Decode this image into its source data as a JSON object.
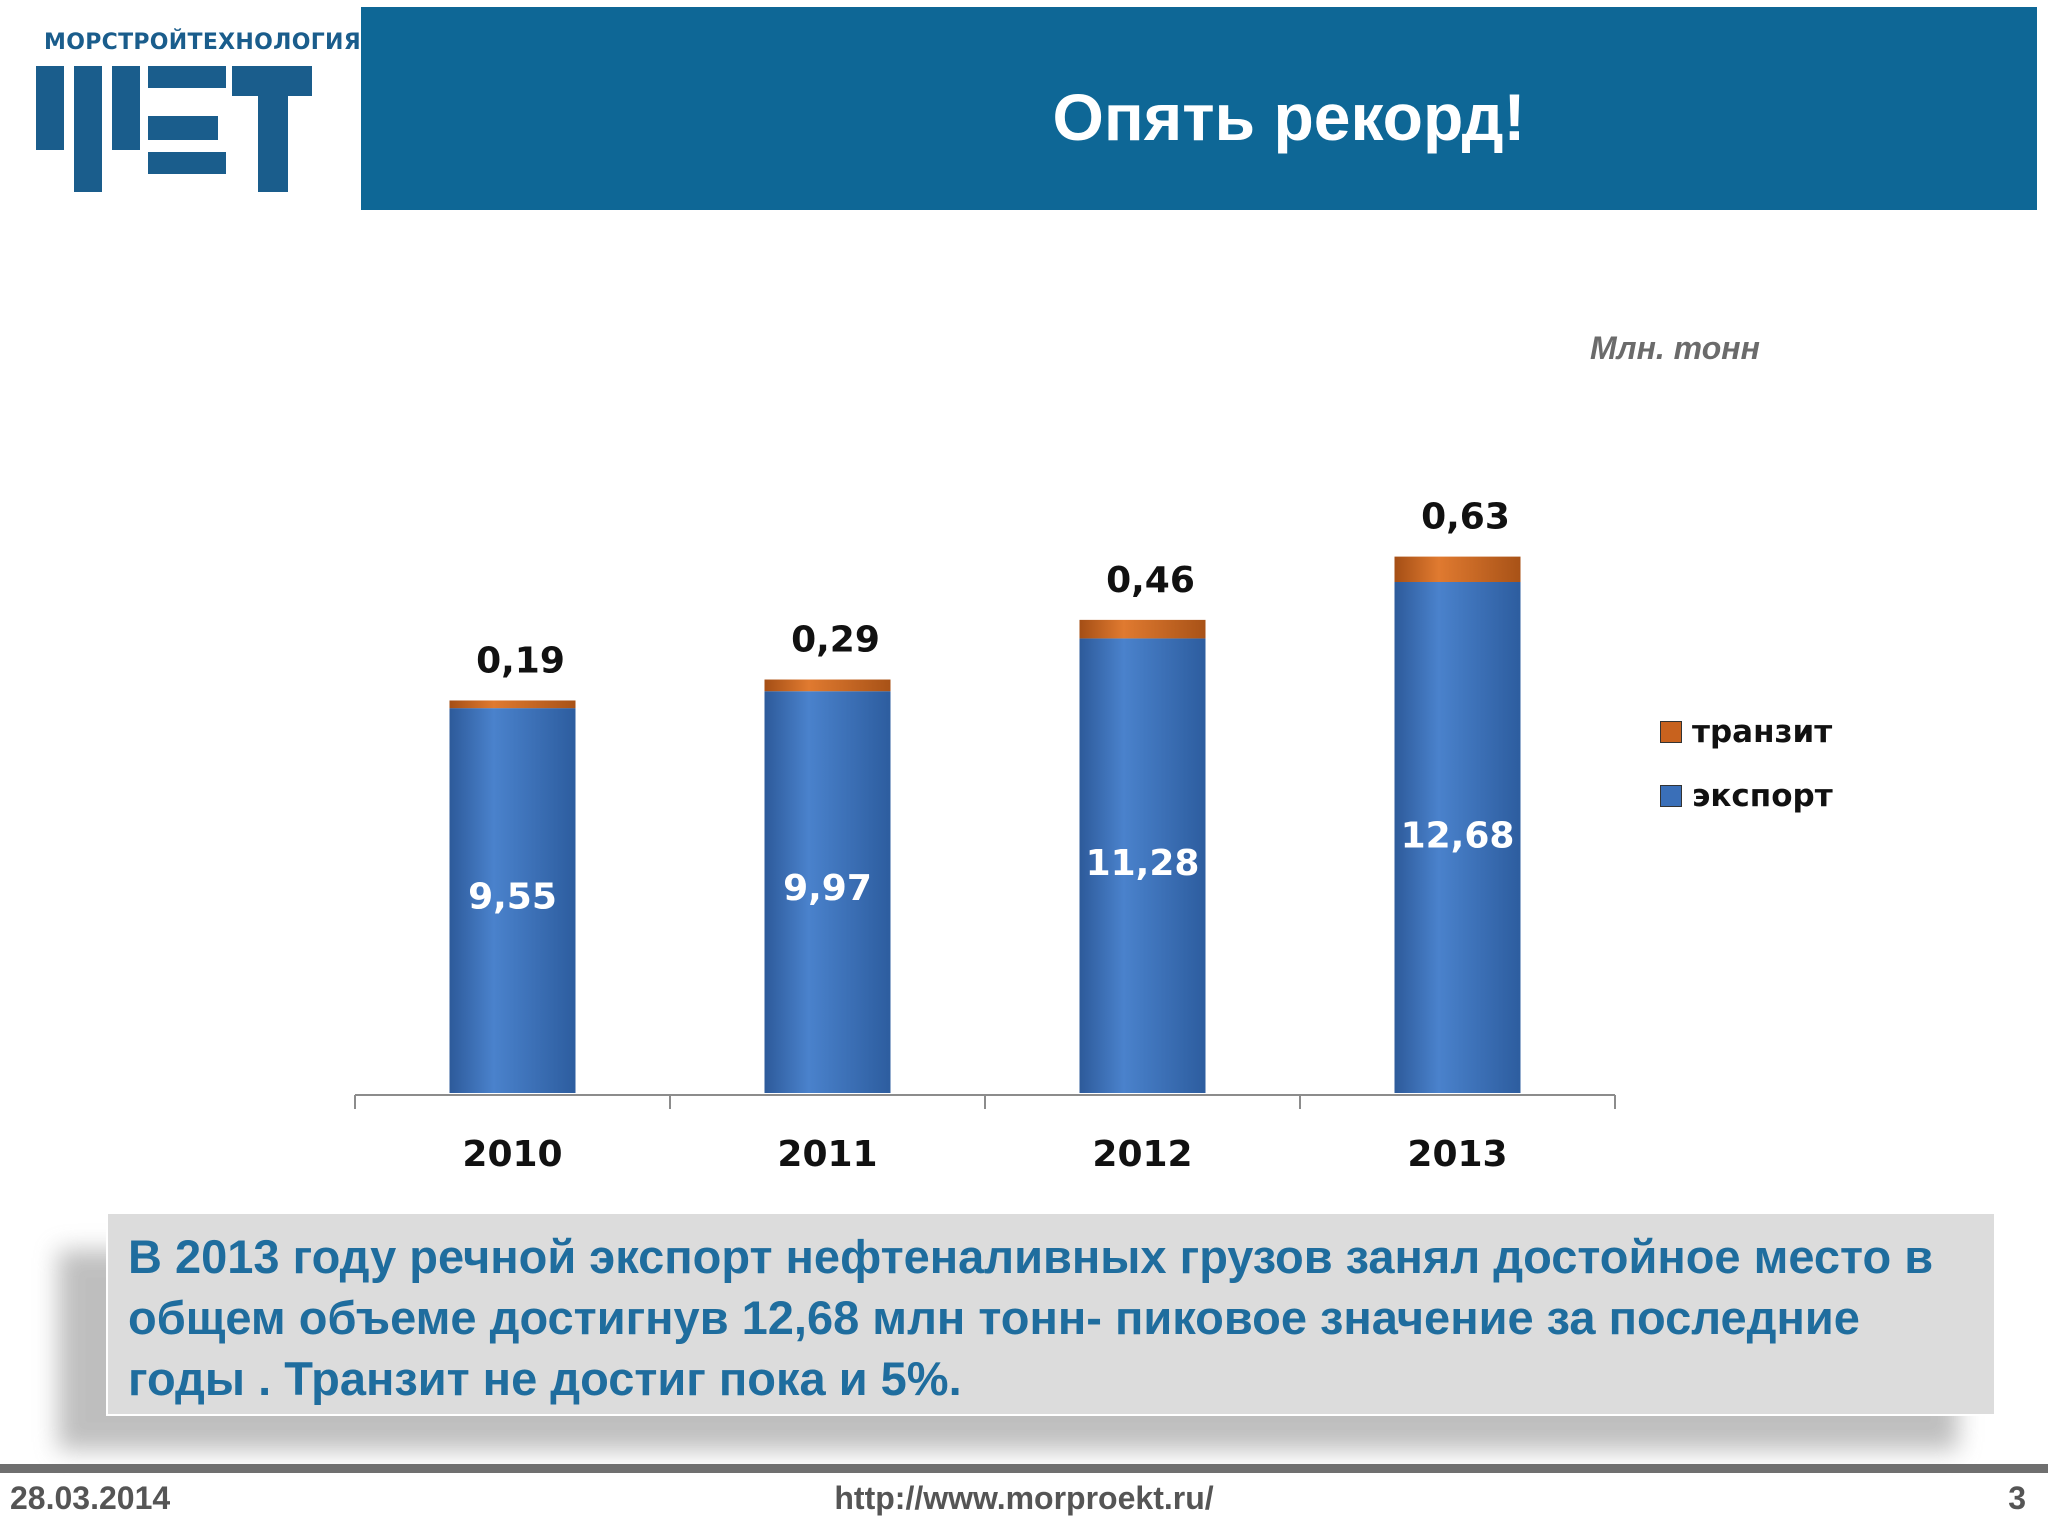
{
  "logo": {
    "text": "МОРСТРОЙТЕХНОЛОГИЯ",
    "mark": "mst-logo-icon"
  },
  "header": {
    "title": "Опять рекорд!"
  },
  "chart_data": {
    "type": "bar",
    "stacked": true,
    "categories": [
      "2010",
      "2011",
      "2012",
      "2013"
    ],
    "series": [
      {
        "name": "экспорт",
        "values": [
          9.55,
          9.97,
          11.28,
          12.68
        ],
        "labels": [
          "9,55",
          "9,97",
          "11,28",
          "12,68"
        ],
        "color": "#3a6fb8"
      },
      {
        "name": "транзит",
        "values": [
          0.19,
          0.29,
          0.46,
          0.63
        ],
        "labels": [
          "0,19",
          "0,29",
          "0,46",
          "0,63"
        ],
        "color": "#c8621e"
      }
    ],
    "unit": "Млн. тонн",
    "ylim": [
      0,
      13.5
    ],
    "grid": false,
    "legend_position": "right"
  },
  "note": {
    "text": "В 2013 году речной экспорт нефтеналивных грузов занял достойное место в общем объеме достигнув 12,68 млн тонн- пиковое значение за последние годы . Транзит не достиг пока и 5%."
  },
  "footer": {
    "date": "28.03.2014",
    "url": "http://www.morproekt.ru/",
    "page": "3"
  }
}
